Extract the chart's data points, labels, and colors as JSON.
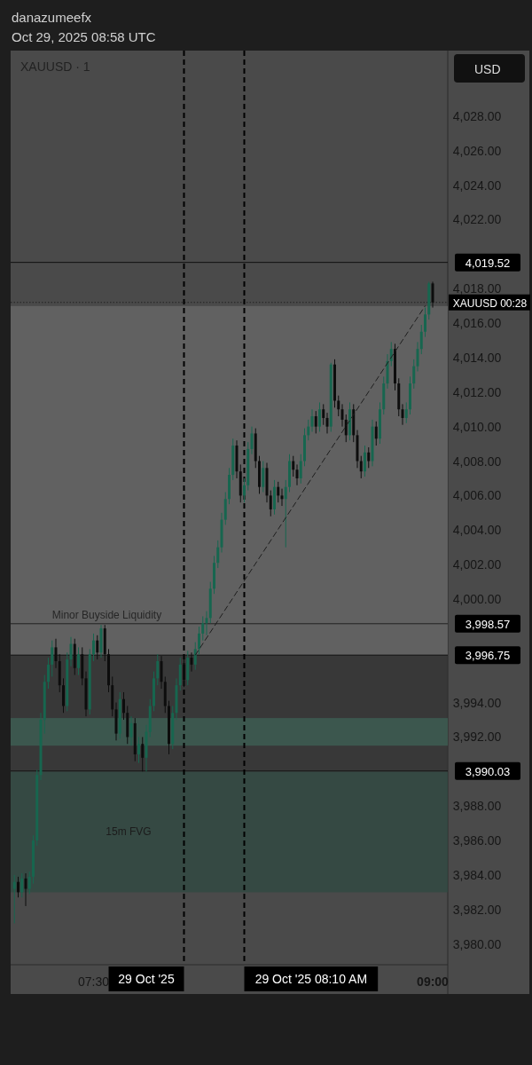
{
  "chart_data": {
    "type": "candlestick",
    "title": "danazumeefx",
    "subtitle": "Oct 29, 2025 08:58 UTC",
    "ylabel": "USD",
    "annotations": [
      "XAUUSD · 1",
      {
        "text": "Minor Buyside Liquidity",
        "x": "2025-10-29T07:19",
        "y": 3998.57
      },
      {
        "text": "XAUUSD 00:28",
        "x": "2025-10-29T09:04",
        "y": 4017.2
      }
    ],
    "grid": false,
    "xlim": [
      "2025-10-29T07:08",
      "2025-10-29T09:04"
    ],
    "xticks": [
      {
        "value": "2025-10-29T07:30",
        "label": "07:30"
      },
      {
        "value": "2025-10-29T09:00",
        "label": "09:00"
      }
    ],
    "ylim": [
      3978.8,
      4031.8
    ],
    "yticks": [
      {
        "value": 3980,
        "label": "3,980.00"
      },
      {
        "value": 3982,
        "label": "3,982.00"
      },
      {
        "value": 3984,
        "label": "3,984.00"
      },
      {
        "value": 3986,
        "label": "3,986.00"
      },
      {
        "value": 3988,
        "label": "3,988.00"
      },
      {
        "value": 3992,
        "label": "3,992.00"
      },
      {
        "value": 3994,
        "label": "3,994.00"
      },
      {
        "value": 4000,
        "label": "4,000.00"
      },
      {
        "value": 4002,
        "label": "4,002.00"
      },
      {
        "value": 4004,
        "label": "4,004.00"
      },
      {
        "value": 4006,
        "label": "4,006.00"
      },
      {
        "value": 4008,
        "label": "4,008.00"
      },
      {
        "value": 4010,
        "label": "4,010.00"
      },
      {
        "value": 4012,
        "label": "4,012.00"
      },
      {
        "value": 4014,
        "label": "4,014.00"
      },
      {
        "value": 4016,
        "label": "4,016.00"
      },
      {
        "value": 4018,
        "label": "4,018.00"
      },
      {
        "value": 4022,
        "label": "4,022.00"
      },
      {
        "value": 4024,
        "label": "4,024.00"
      },
      {
        "value": 4026,
        "label": "4,026.00"
      },
      {
        "value": 4028,
        "label": "4,028.00"
      }
    ],
    "bands": [
      {
        "axis": "y",
        "from": 3996.75,
        "to": 4016.99,
        "color": "#6a6a6a"
      },
      {
        "axis": "y",
        "from": 3990.03,
        "to": 3996.75,
        "color": "#333333"
      },
      {
        "axis": "y",
        "from": 3983,
        "to": 3990,
        "label": "15m FVG",
        "color": "#2f4a42"
      },
      {
        "axis": "y",
        "from": 3991.5,
        "to": 3993.1,
        "color": "#3d6256"
      }
    ],
    "ref_lines": [
      {
        "axis": "y",
        "value": 4019.52,
        "label": "4,019.52",
        "color": "#111111",
        "line_style": "solid"
      },
      {
        "axis": "y",
        "value": 4017.2,
        "color": "#222222",
        "line_style": "dotted"
      },
      {
        "axis": "y",
        "value": 3998.57,
        "label": "3,998.57",
        "color": "#222222",
        "line_style": "solid"
      },
      {
        "axis": "y",
        "value": 3996.75,
        "label": "3,996.75",
        "color": "#111111",
        "line_style": "solid"
      },
      {
        "axis": "y",
        "value": 3990.03,
        "label": "3,990.03",
        "color": "#111111",
        "line_style": "solid"
      },
      {
        "axis": "x",
        "value": "2025-10-29T07:54",
        "label": "29 Oct '25",
        "color": "#000000",
        "line_style": "dashed"
      },
      {
        "axis": "x",
        "value": "2025-10-29T08:10",
        "label": "29 Oct '25 08:10 AM",
        "color": "#000000",
        "line_style": "dashed"
      }
    ],
    "series": [
      {
        "type": "candlestick",
        "colors": [
          "#17664f",
          "#0d0d0d",
          "#17664f",
          "#0d0d0d",
          "#17664f",
          "#17664f",
          "#17664f",
          "#17664f",
          "#17664f",
          "#17664f",
          "#17664f",
          "#0d0d0d",
          "#0d0d0d",
          "#0d0d0d",
          "#17664f",
          "#17664f",
          "#0d0d0d",
          "#17664f",
          "#0d0d0d",
          "#0d0d0d",
          "#17664f",
          "#17664f",
          "#0d0d0d",
          "#17664f",
          "#0d0d0d",
          "#0d0d0d",
          "#0d0d0d",
          "#0d0d0d",
          "#17664f",
          "#0d0d0d",
          "#0d0d0d",
          "#17664f",
          "#0d0d0d",
          "#17664f",
          "#0d0d0d",
          "#17664f",
          "#17664f",
          "#17664f",
          "#17664f",
          "#0d0d0d",
          "#0d0d0d",
          "#0d0d0d",
          "#17664f",
          "#17664f",
          "#17664f",
          "#0d0d0d",
          "#17664f",
          "#0d0d0d",
          "#17664f",
          "#17664f",
          "#17664f",
          "#17664f",
          "#17664f",
          "#17664f",
          "#17664f",
          "#17664f",
          "#17664f",
          "#17664f",
          "#17664f",
          "#0d0d0d",
          "#0d0d0d",
          "#17664f",
          "#17664f",
          "#17664f",
          "#0d0d0d",
          "#0d0d0d",
          "#17664f",
          "#0d0d0d",
          "#0d0d0d",
          "#17664f",
          "#0d0d0d",
          "#0d0d0d",
          "#17664f",
          "#17664f",
          "#0d0d0d",
          "#0d0d0d",
          "#17664f",
          "#17664f",
          "#17664f",
          "#17664f",
          "#0d0d0d",
          "#17664f",
          "#0d0d0d",
          "#0d0d0d",
          "#17664f",
          "#0d0d0d",
          "#0d0d0d",
          "#0d0d0d",
          "#0d0d0d",
          "#17664f",
          "#0d0d0d",
          "#0d0d0d",
          "#0d0d0d",
          "#17664f",
          "#0d0d0d",
          "#17664f",
          "#0d0d0d",
          "#17664f",
          "#17664f",
          "#17664f",
          "#17664f",
          "#0d0d0d",
          "#0d0d0d",
          "#0d0d0d",
          "#17664f",
          "#17664f",
          "#17664f",
          "#17664f",
          "#17664f",
          "#17664f",
          "#17664f",
          "#0d0d0d"
        ],
        "x": [
          "2025-10-29T07:09",
          "2025-10-29T07:10",
          "2025-10-29T07:11",
          "2025-10-29T07:12",
          "2025-10-29T07:13",
          "2025-10-29T07:14",
          "2025-10-29T07:15",
          "2025-10-29T07:16",
          "2025-10-29T07:17",
          "2025-10-29T07:18",
          "2025-10-29T07:19",
          "2025-10-29T07:20",
          "2025-10-29T07:21",
          "2025-10-29T07:22",
          "2025-10-29T07:23",
          "2025-10-29T07:24",
          "2025-10-29T07:25",
          "2025-10-29T07:26",
          "2025-10-29T07:27",
          "2025-10-29T07:28",
          "2025-10-29T07:29",
          "2025-10-29T07:30",
          "2025-10-29T07:31",
          "2025-10-29T07:32",
          "2025-10-29T07:33",
          "2025-10-29T07:34",
          "2025-10-29T07:35",
          "2025-10-29T07:36",
          "2025-10-29T07:37",
          "2025-10-29T07:38",
          "2025-10-29T07:39",
          "2025-10-29T07:40",
          "2025-10-29T07:41",
          "2025-10-29T07:42",
          "2025-10-29T07:43",
          "2025-10-29T07:44",
          "2025-10-29T07:45",
          "2025-10-29T07:46",
          "2025-10-29T07:47",
          "2025-10-29T07:48",
          "2025-10-29T07:49",
          "2025-10-29T07:50",
          "2025-10-29T07:51",
          "2025-10-29T07:52",
          "2025-10-29T07:53",
          "2025-10-29T07:54",
          "2025-10-29T07:55",
          "2025-10-29T07:56",
          "2025-10-29T07:57",
          "2025-10-29T07:58",
          "2025-10-29T07:59",
          "2025-10-29T08:00",
          "2025-10-29T08:01",
          "2025-10-29T08:02",
          "2025-10-29T08:03",
          "2025-10-29T08:04",
          "2025-10-29T08:05",
          "2025-10-29T08:06",
          "2025-10-29T08:07",
          "2025-10-29T08:08",
          "2025-10-29T08:09",
          "2025-10-29T08:10",
          "2025-10-29T08:11",
          "2025-10-29T08:12",
          "2025-10-29T08:13",
          "2025-10-29T08:14",
          "2025-10-29T08:15",
          "2025-10-29T08:16",
          "2025-10-29T08:17",
          "2025-10-29T08:18",
          "2025-10-29T08:19",
          "2025-10-29T08:20",
          "2025-10-29T08:21",
          "2025-10-29T08:22",
          "2025-10-29T08:23",
          "2025-10-29T08:24",
          "2025-10-29T08:25",
          "2025-10-29T08:26",
          "2025-10-29T08:27",
          "2025-10-29T08:28",
          "2025-10-29T08:29",
          "2025-10-29T08:30",
          "2025-10-29T08:31",
          "2025-10-29T08:32",
          "2025-10-29T08:33",
          "2025-10-29T08:34",
          "2025-10-29T08:35",
          "2025-10-29T08:36",
          "2025-10-29T08:37",
          "2025-10-29T08:38",
          "2025-10-29T08:39",
          "2025-10-29T08:40",
          "2025-10-29T08:41",
          "2025-10-29T08:42",
          "2025-10-29T08:43",
          "2025-10-29T08:44",
          "2025-10-29T08:45",
          "2025-10-29T08:46",
          "2025-10-29T08:47",
          "2025-10-29T08:48",
          "2025-10-29T08:49",
          "2025-10-29T08:50",
          "2025-10-29T08:51",
          "2025-10-29T08:52",
          "2025-10-29T08:53",
          "2025-10-29T08:54",
          "2025-10-29T08:55",
          "2025-10-29T08:56",
          "2025-10-29T08:57",
          "2025-10-29T08:58",
          "2025-10-29T08:59",
          "2025-10-29T09:00"
        ],
        "ohlc": [
          [
            3983.2,
            3984.0,
            3981.2,
            3983.6
          ],
          [
            3983.6,
            3983.9,
            3982.7,
            3983.0
          ],
          [
            3983.0,
            3984.1,
            3982.7,
            3983.8
          ],
          [
            3983.8,
            3984.1,
            3982.2,
            3983.2
          ],
          [
            3983.2,
            3984.2,
            3982.9,
            3983.9
          ],
          [
            3983.9,
            3986.3,
            3983.5,
            3986.0
          ],
          [
            3986.0,
            3990.1,
            3985.7,
            3989.8
          ],
          [
            3989.8,
            3993.4,
            3989.5,
            3993.0
          ],
          [
            3993.0,
            3995.6,
            3992.2,
            3995.2
          ],
          [
            3995.2,
            3996.6,
            3994.8,
            3996.2
          ],
          [
            3996.2,
            3997.6,
            3995.5,
            3997.2
          ],
          [
            3997.2,
            3997.7,
            3996.0,
            3996.4
          ],
          [
            3996.4,
            3996.8,
            3994.6,
            3995.0
          ],
          [
            3995.0,
            3995.4,
            3993.4,
            3993.8
          ],
          [
            3993.8,
            3996.9,
            3993.5,
            3996.5
          ],
          [
            3996.5,
            3997.8,
            3996.1,
            3997.4
          ],
          [
            3997.4,
            3997.7,
            3995.6,
            3996.0
          ],
          [
            3996.0,
            3997.2,
            3995.6,
            3996.8
          ],
          [
            3996.8,
            3997.2,
            3995.0,
            3995.4
          ],
          [
            3995.4,
            3995.8,
            3993.2,
            3993.6
          ],
          [
            3993.6,
            3997.1,
            3993.3,
            3996.8
          ],
          [
            3996.8,
            3998.0,
            3996.4,
            3997.6
          ],
          [
            3997.6,
            3997.9,
            3996.5,
            3996.9
          ],
          [
            3996.9,
            3998.5,
            3996.6,
            3998.3
          ],
          [
            3998.3,
            3998.5,
            3996.4,
            3996.8
          ],
          [
            3996.8,
            3997.1,
            3994.6,
            3995.0
          ],
          [
            3995.0,
            3995.5,
            3993.2,
            3993.6
          ],
          [
            3993.6,
            3994.0,
            3991.8,
            3992.2
          ],
          [
            3992.2,
            3994.6,
            3991.9,
            3994.2
          ],
          [
            3994.2,
            3994.6,
            3993.0,
            3993.4
          ],
          [
            3993.4,
            3993.8,
            3991.6,
            3992.0
          ],
          [
            3992.0,
            3993.2,
            3991.5,
            3992.8
          ],
          [
            3992.8,
            3993.1,
            3990.6,
            3991.0
          ],
          [
            3991.0,
            3992.0,
            3990.5,
            3991.6
          ],
          [
            3991.6,
            3992.0,
            3990.0,
            3990.8
          ],
          [
            3990.8,
            3992.7,
            3990.0,
            3992.3
          ],
          [
            3992.3,
            3994.2,
            3992.0,
            3993.8
          ],
          [
            3993.8,
            3995.8,
            3993.5,
            3995.4
          ],
          [
            3995.4,
            3996.8,
            3995.0,
            3996.4
          ],
          [
            3996.4,
            3996.7,
            3994.8,
            3995.2
          ],
          [
            3995.2,
            3995.5,
            3993.4,
            3993.8
          ],
          [
            3993.8,
            3994.1,
            3991.0,
            3991.6
          ],
          [
            3991.6,
            3993.8,
            3991.3,
            3993.4
          ],
          [
            3993.4,
            3995.4,
            3993.0,
            3995.0
          ],
          [
            3995.0,
            3996.6,
            3994.7,
            3996.2
          ],
          [
            3996.2,
            3996.5,
            3994.9,
            3995.3
          ],
          [
            3995.3,
            3997.0,
            3995.0,
            3996.6
          ],
          [
            3996.6,
            3996.9,
            3995.8,
            3996.2
          ],
          [
            3996.2,
            3997.5,
            3995.9,
            3997.1
          ],
          [
            3997.1,
            3998.4,
            3996.8,
            3998.0
          ],
          [
            3998.0,
            3999.0,
            3997.6,
            3998.6
          ],
          [
            3998.6,
            3999.3,
            3997.9,
            3998.9
          ],
          [
            3998.9,
            4001.0,
            3998.6,
            4000.6
          ],
          [
            4000.6,
            4002.5,
            4000.3,
            4002.1
          ],
          [
            4002.1,
            4003.4,
            4001.8,
            4003.0
          ],
          [
            4003.0,
            4005.0,
            4002.7,
            4004.6
          ],
          [
            4004.6,
            4006.2,
            4004.3,
            4005.8
          ],
          [
            4005.8,
            4007.6,
            4005.5,
            4007.2
          ],
          [
            4007.2,
            4009.3,
            4006.9,
            4008.9
          ],
          [
            4008.9,
            4009.2,
            4007.0,
            4007.4
          ],
          [
            4007.4,
            4007.8,
            4005.6,
            4006.0
          ],
          [
            4006.0,
            4007.0,
            4005.6,
            4006.6
          ],
          [
            4006.6,
            4009.1,
            4006.3,
            4008.7
          ],
          [
            4008.7,
            4010.0,
            4008.4,
            4009.6
          ],
          [
            4009.6,
            4009.9,
            4007.6,
            4008.0
          ],
          [
            4008.0,
            4008.3,
            4006.1,
            4006.5
          ],
          [
            4006.5,
            4008.0,
            4006.2,
            4007.6
          ],
          [
            4007.6,
            4007.9,
            4005.6,
            4006.0
          ],
          [
            4006.0,
            4006.3,
            4004.8,
            4005.2
          ],
          [
            4005.2,
            4006.9,
            4004.9,
            4006.5
          ],
          [
            4006.5,
            4006.8,
            4005.6,
            4006.0
          ],
          [
            4006.0,
            4006.4,
            4005.4,
            4005.8
          ],
          [
            4005.8,
            4006.9,
            4003.0,
            4006.5
          ],
          [
            4006.5,
            4008.4,
            4006.2,
            4008.0
          ],
          [
            4008.0,
            4008.3,
            4007.1,
            4007.5
          ],
          [
            4007.5,
            4007.8,
            4006.6,
            4007.0
          ],
          [
            4007.0,
            4008.4,
            4006.7,
            4008.0
          ],
          [
            4008.0,
            4009.9,
            4007.7,
            4009.5
          ],
          [
            4009.5,
            4010.4,
            4009.2,
            4010.0
          ],
          [
            4010.0,
            4011.0,
            4009.7,
            4010.6
          ],
          [
            4010.6,
            4010.9,
            4009.6,
            4010.0
          ],
          [
            4010.0,
            4011.4,
            4009.7,
            4011.0
          ],
          [
            4011.0,
            4011.3,
            4010.1,
            4010.5
          ],
          [
            4010.5,
            4010.8,
            4009.6,
            4010.0
          ],
          [
            4010.0,
            4013.7,
            4009.7,
            4013.6
          ],
          [
            4013.6,
            4013.9,
            4011.1,
            4011.5
          ],
          [
            4011.5,
            4011.8,
            4010.6,
            4011.0
          ],
          [
            4011.0,
            4011.3,
            4010.0,
            4010.4
          ],
          [
            4010.4,
            4010.7,
            4009.1,
            4009.5
          ],
          [
            4009.5,
            4011.4,
            4009.2,
            4011.0
          ],
          [
            4011.0,
            4011.3,
            4009.1,
            4009.5
          ],
          [
            4009.5,
            4009.8,
            4007.6,
            4008.0
          ],
          [
            4008.0,
            4008.3,
            4007.0,
            4007.4
          ],
          [
            4007.4,
            4008.9,
            4007.1,
            4008.5
          ],
          [
            4008.5,
            4008.8,
            4007.6,
            4008.0
          ],
          [
            4008.0,
            4010.4,
            4007.7,
            4010.0
          ],
          [
            4010.0,
            4010.3,
            4008.9,
            4009.3
          ],
          [
            4009.3,
            4011.4,
            4009.0,
            4011.0
          ],
          [
            4011.0,
            4012.9,
            4010.7,
            4012.5
          ],
          [
            4012.5,
            4014.2,
            4012.2,
            4013.8
          ],
          [
            4013.8,
            4014.9,
            4013.5,
            4014.5
          ],
          [
            4014.5,
            4014.8,
            4012.1,
            4012.5
          ],
          [
            4012.5,
            4012.8,
            4010.6,
            4011.0
          ],
          [
            4011.0,
            4011.3,
            4010.1,
            4010.5
          ],
          [
            4010.5,
            4011.4,
            4010.2,
            4011.0
          ],
          [
            4011.0,
            4012.9,
            4010.7,
            4012.5
          ],
          [
            4012.5,
            4013.9,
            4012.2,
            4013.5
          ],
          [
            4013.5,
            4014.9,
            4013.2,
            4014.5
          ],
          [
            4014.5,
            4015.9,
            4014.2,
            4015.5
          ],
          [
            4015.5,
            4016.9,
            4015.2,
            4016.5
          ],
          [
            4016.5,
            4018.4,
            4016.2,
            4018.3
          ],
          [
            4018.3,
            4018.4,
            4016.9,
            4017.2
          ]
        ]
      },
      {
        "type": "line",
        "color": "#1e1e1e",
        "line_style": "dashed",
        "x": [
          "2025-10-29T07:57",
          "2025-10-29T08:58"
        ],
        "values": [
          3996.75,
          4017.0
        ]
      }
    ]
  }
}
